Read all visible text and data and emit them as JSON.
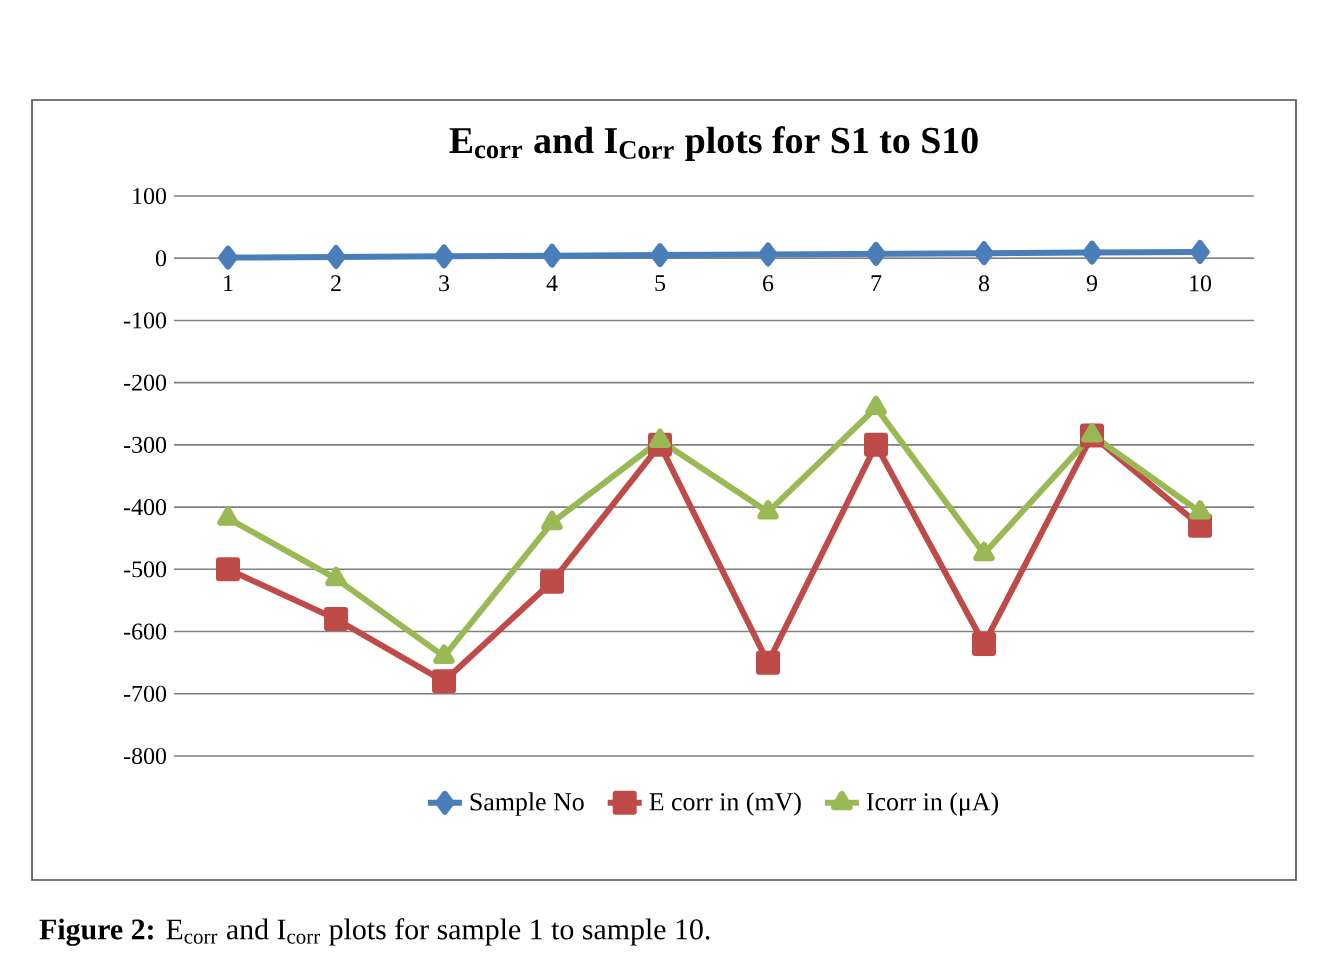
{
  "chart_data": {
    "type": "line",
    "title": "E$_{corr}$ and I$_{Corr}$ plots for S1 to S10",
    "categories": [
      "1",
      "2",
      "3",
      "4",
      "5",
      "6",
      "7",
      "8",
      "9",
      "10"
    ],
    "series": [
      {
        "name": "Sample No",
        "color": "#4a7ebb",
        "marker": "diamond",
        "values": [
          1,
          2,
          3,
          4,
          5,
          6,
          7,
          8,
          9,
          10
        ]
      },
      {
        "name": "E corr in (mV)",
        "color": "#be4b48",
        "marker": "square",
        "values": [
          -500,
          -580,
          -680,
          -520,
          -300,
          -650,
          -300,
          -620,
          -285,
          -430
        ]
      },
      {
        "name": "Icorr in (μA)",
        "color": "#98b954",
        "marker": "triangle",
        "values": [
          -418,
          -515,
          -640,
          -425,
          -293,
          -408,
          -240,
          -475,
          -284,
          -408
        ]
      }
    ],
    "ylim": [
      -800,
      100
    ],
    "yticks": [
      -800,
      -700,
      -600,
      -500,
      -400,
      -300,
      -200,
      -100,
      0,
      100
    ],
    "grid": "y",
    "legend": "bottom",
    "line_style": "solid",
    "annotations": [
      "**Figure 2:** E$_{corr}$ and I$_{corr}$ plots for sample 1 to sample 10."
    ]
  }
}
